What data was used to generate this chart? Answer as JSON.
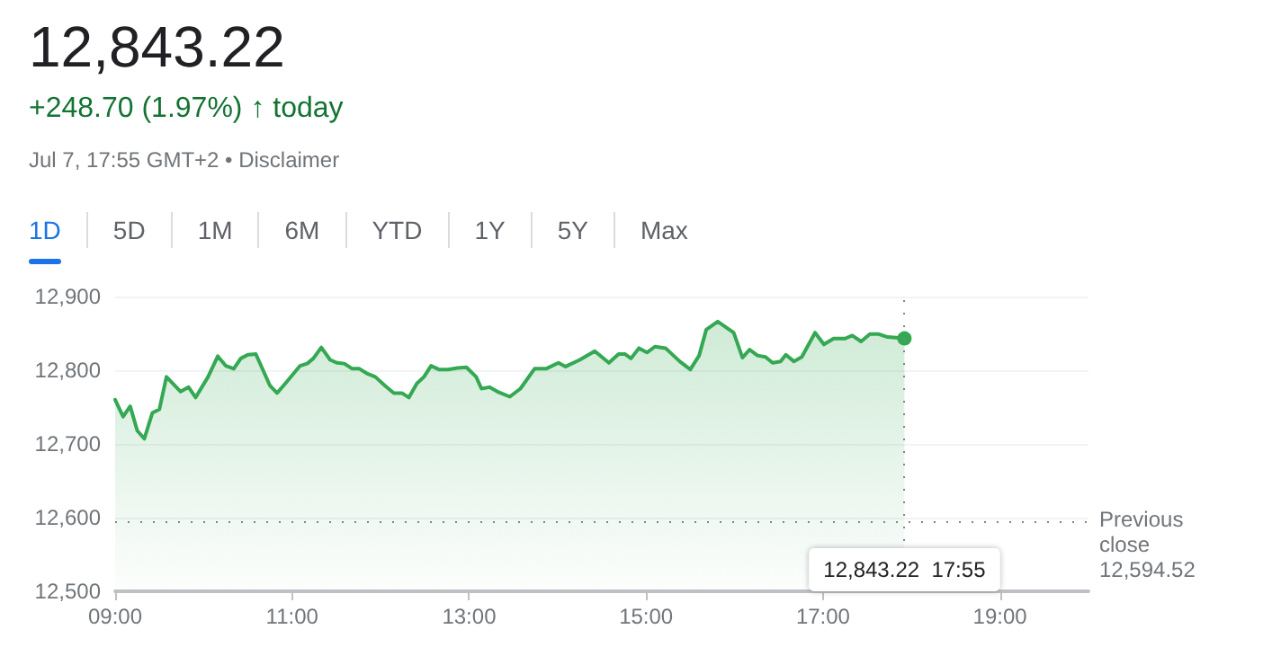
{
  "chart_data": {
    "type": "area",
    "title": "12,843.22",
    "subtitle": "+248.70 (1.97%) ↑ today",
    "annotations": [
      "Jul 7, 17:55 GMT+2 • Disclaimer",
      "1D",
      "5D",
      "1M",
      "6M",
      "YTD",
      "1Y",
      "5Y",
      "Max",
      "12,843.22  17:55"
    ],
    "x": [
      9.0,
      9.09,
      9.17,
      9.25,
      9.33,
      9.42,
      9.5,
      9.58,
      9.74,
      9.83,
      9.91,
      10.05,
      10.16,
      10.25,
      10.34,
      10.42,
      10.5,
      10.59,
      10.75,
      10.83,
      10.93,
      11.09,
      11.17,
      11.24,
      11.33,
      11.43,
      11.51,
      11.59,
      11.68,
      11.76,
      11.84,
      11.94,
      12.05,
      12.15,
      12.24,
      12.32,
      12.41,
      12.49,
      12.57,
      12.66,
      12.76,
      12.87,
      12.97,
      13.08,
      13.14,
      13.23,
      13.32,
      13.46,
      13.58,
      13.74,
      13.87,
      14.01,
      14.09,
      14.25,
      14.42,
      14.58,
      14.69,
      14.76,
      14.83,
      14.92,
      15.01,
      15.1,
      15.22,
      15.38,
      15.5,
      15.6,
      15.68,
      15.81,
      15.99,
      16.09,
      16.17,
      16.26,
      16.35,
      16.43,
      16.52,
      16.58,
      16.67,
      16.76,
      16.91,
      17.01,
      17.12,
      17.25,
      17.33,
      17.43,
      17.53,
      17.63,
      17.73,
      17.92
    ],
    "series": [
      {
        "color": "#34a853",
        "values": [
          12760,
          12737,
          12751,
          12718,
          12707,
          12742,
          12747,
          12791,
          12771,
          12777,
          12763,
          12791,
          12819,
          12806,
          12802,
          12816,
          12821,
          12822,
          12779,
          12769,
          12783,
          12806,
          12809,
          12816,
          12831,
          12814,
          12810,
          12809,
          12802,
          12802,
          12796,
          12791,
          12779,
          12769,
          12769,
          12763,
          12782,
          12791,
          12806,
          12801,
          12801,
          12803,
          12804,
          12791,
          12775,
          12777,
          12771,
          12764,
          12775,
          12802,
          12802,
          12810,
          12805,
          12814,
          12826,
          12810,
          12822,
          12822,
          12816,
          12830,
          12824,
          12832,
          12830,
          12812,
          12801,
          12820,
          12855,
          12866,
          12851,
          12817,
          12828,
          12820,
          12818,
          12810,
          12812,
          12821,
          12812,
          12818,
          12851,
          12835,
          12843,
          12843,
          12847,
          12839,
          12849,
          12849,
          12845,
          12843.22
        ]
      }
    ],
    "xlim": [
      9,
      20
    ],
    "xticks": [
      {
        "value": 9,
        "label": "09:00"
      },
      {
        "value": 11,
        "label": "11:00"
      },
      {
        "value": 13,
        "label": "13:00"
      },
      {
        "value": 15,
        "label": "15:00"
      },
      {
        "value": 17,
        "label": "17:00"
      },
      {
        "value": 19,
        "label": "19:00"
      }
    ],
    "ylim": [
      12500,
      12900
    ],
    "yticks": [
      {
        "value": 12500,
        "label": "12,500"
      },
      {
        "value": 12600,
        "label": "12,600"
      },
      {
        "value": 12700,
        "label": "12,700"
      },
      {
        "value": 12800,
        "label": "12,800"
      },
      {
        "value": 12900,
        "label": "12,900"
      }
    ],
    "ref_lines": [
      {
        "axis": "y",
        "value": 12594.52,
        "label": "Previous close 12,594.52",
        "color": "#80868b",
        "line_style": "dotted"
      },
      {
        "axis": "x",
        "value": 17.92,
        "color": "#80868b",
        "line_style": "dotted"
      }
    ],
    "grid": "y",
    "marker": "none",
    "line_style": "solid"
  }
}
